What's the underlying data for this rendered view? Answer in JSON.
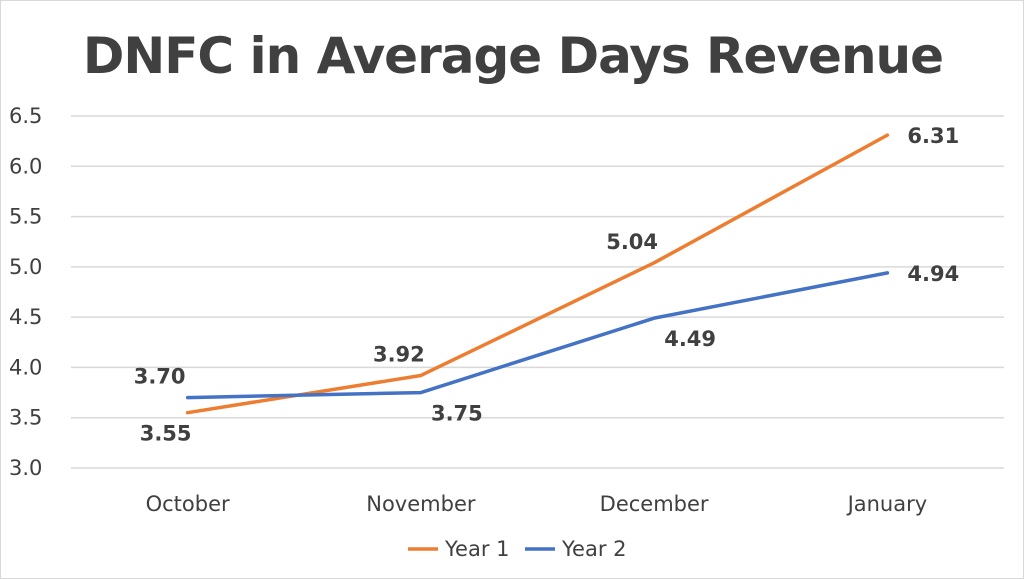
{
  "chart_data": {
    "type": "line",
    "title": "DNFC in Average Days Revenue",
    "categories": [
      "October",
      "November",
      "December",
      "January"
    ],
    "series": [
      {
        "name": "Year 1",
        "values": [
          3.55,
          3.92,
          5.04,
          6.31
        ],
        "color": "#ed7d31",
        "labels": [
          "3.55",
          "3.92",
          "5.04",
          "6.31"
        ]
      },
      {
        "name": "Year 2",
        "values": [
          3.7,
          3.75,
          4.49,
          4.94
        ],
        "color": "#4472c4",
        "labels": [
          "3.70",
          "3.75",
          "4.49",
          "4.94"
        ]
      }
    ],
    "yticks": [
      "3.0",
      "3.5",
      "4.0",
      "4.5",
      "5.0",
      "5.5",
      "6.0",
      "6.5"
    ],
    "ylim": [
      3.0,
      6.5
    ],
    "grid": true,
    "legend": "bottom"
  }
}
